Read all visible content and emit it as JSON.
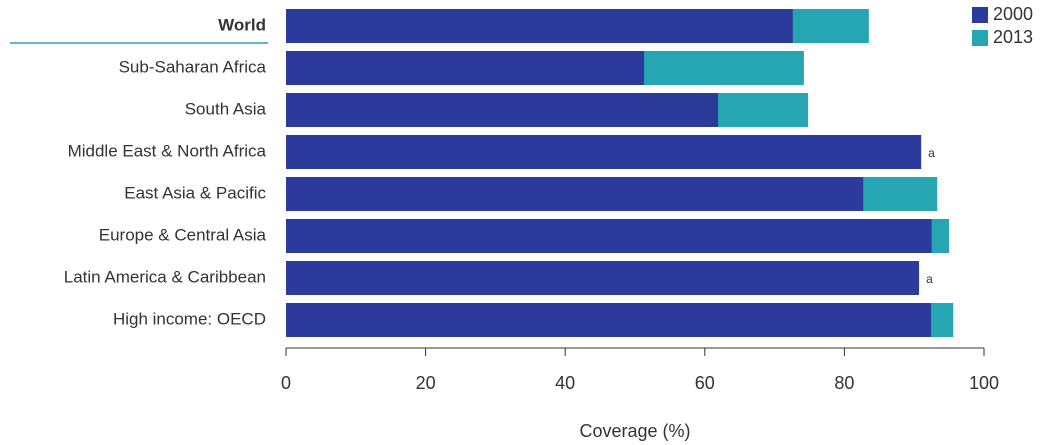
{
  "chart_data": {
    "type": "bar",
    "orientation": "horizontal",
    "overlay": true,
    "categories": [
      "World",
      "Sub-Saharan Africa",
      "South Asia",
      "Middle East & North Africa",
      "East Asia & Pacific",
      "Europe & Central Asia",
      "Latin America & Caribbean",
      "High income: OECD"
    ],
    "highlight_category": "World",
    "series": [
      {
        "name": "2000",
        "color": "#2b3a9b",
        "values": [
          72.6,
          51.3,
          61.9,
          91.0,
          82.7,
          92.5,
          90.7,
          92.4
        ]
      },
      {
        "name": "2013",
        "color": "#25a6b2",
        "values": [
          83.5,
          74.2,
          74.8,
          null,
          93.3,
          95.0,
          null,
          95.6
        ]
      }
    ],
    "annotations": [
      null,
      null,
      null,
      "a",
      null,
      null,
      "a",
      null
    ],
    "xlabel": "Coverage (%)",
    "xlim": [
      0,
      100
    ],
    "xticks": [
      0,
      20,
      40,
      60,
      80,
      100
    ],
    "grid": false,
    "legend": "top-right"
  }
}
